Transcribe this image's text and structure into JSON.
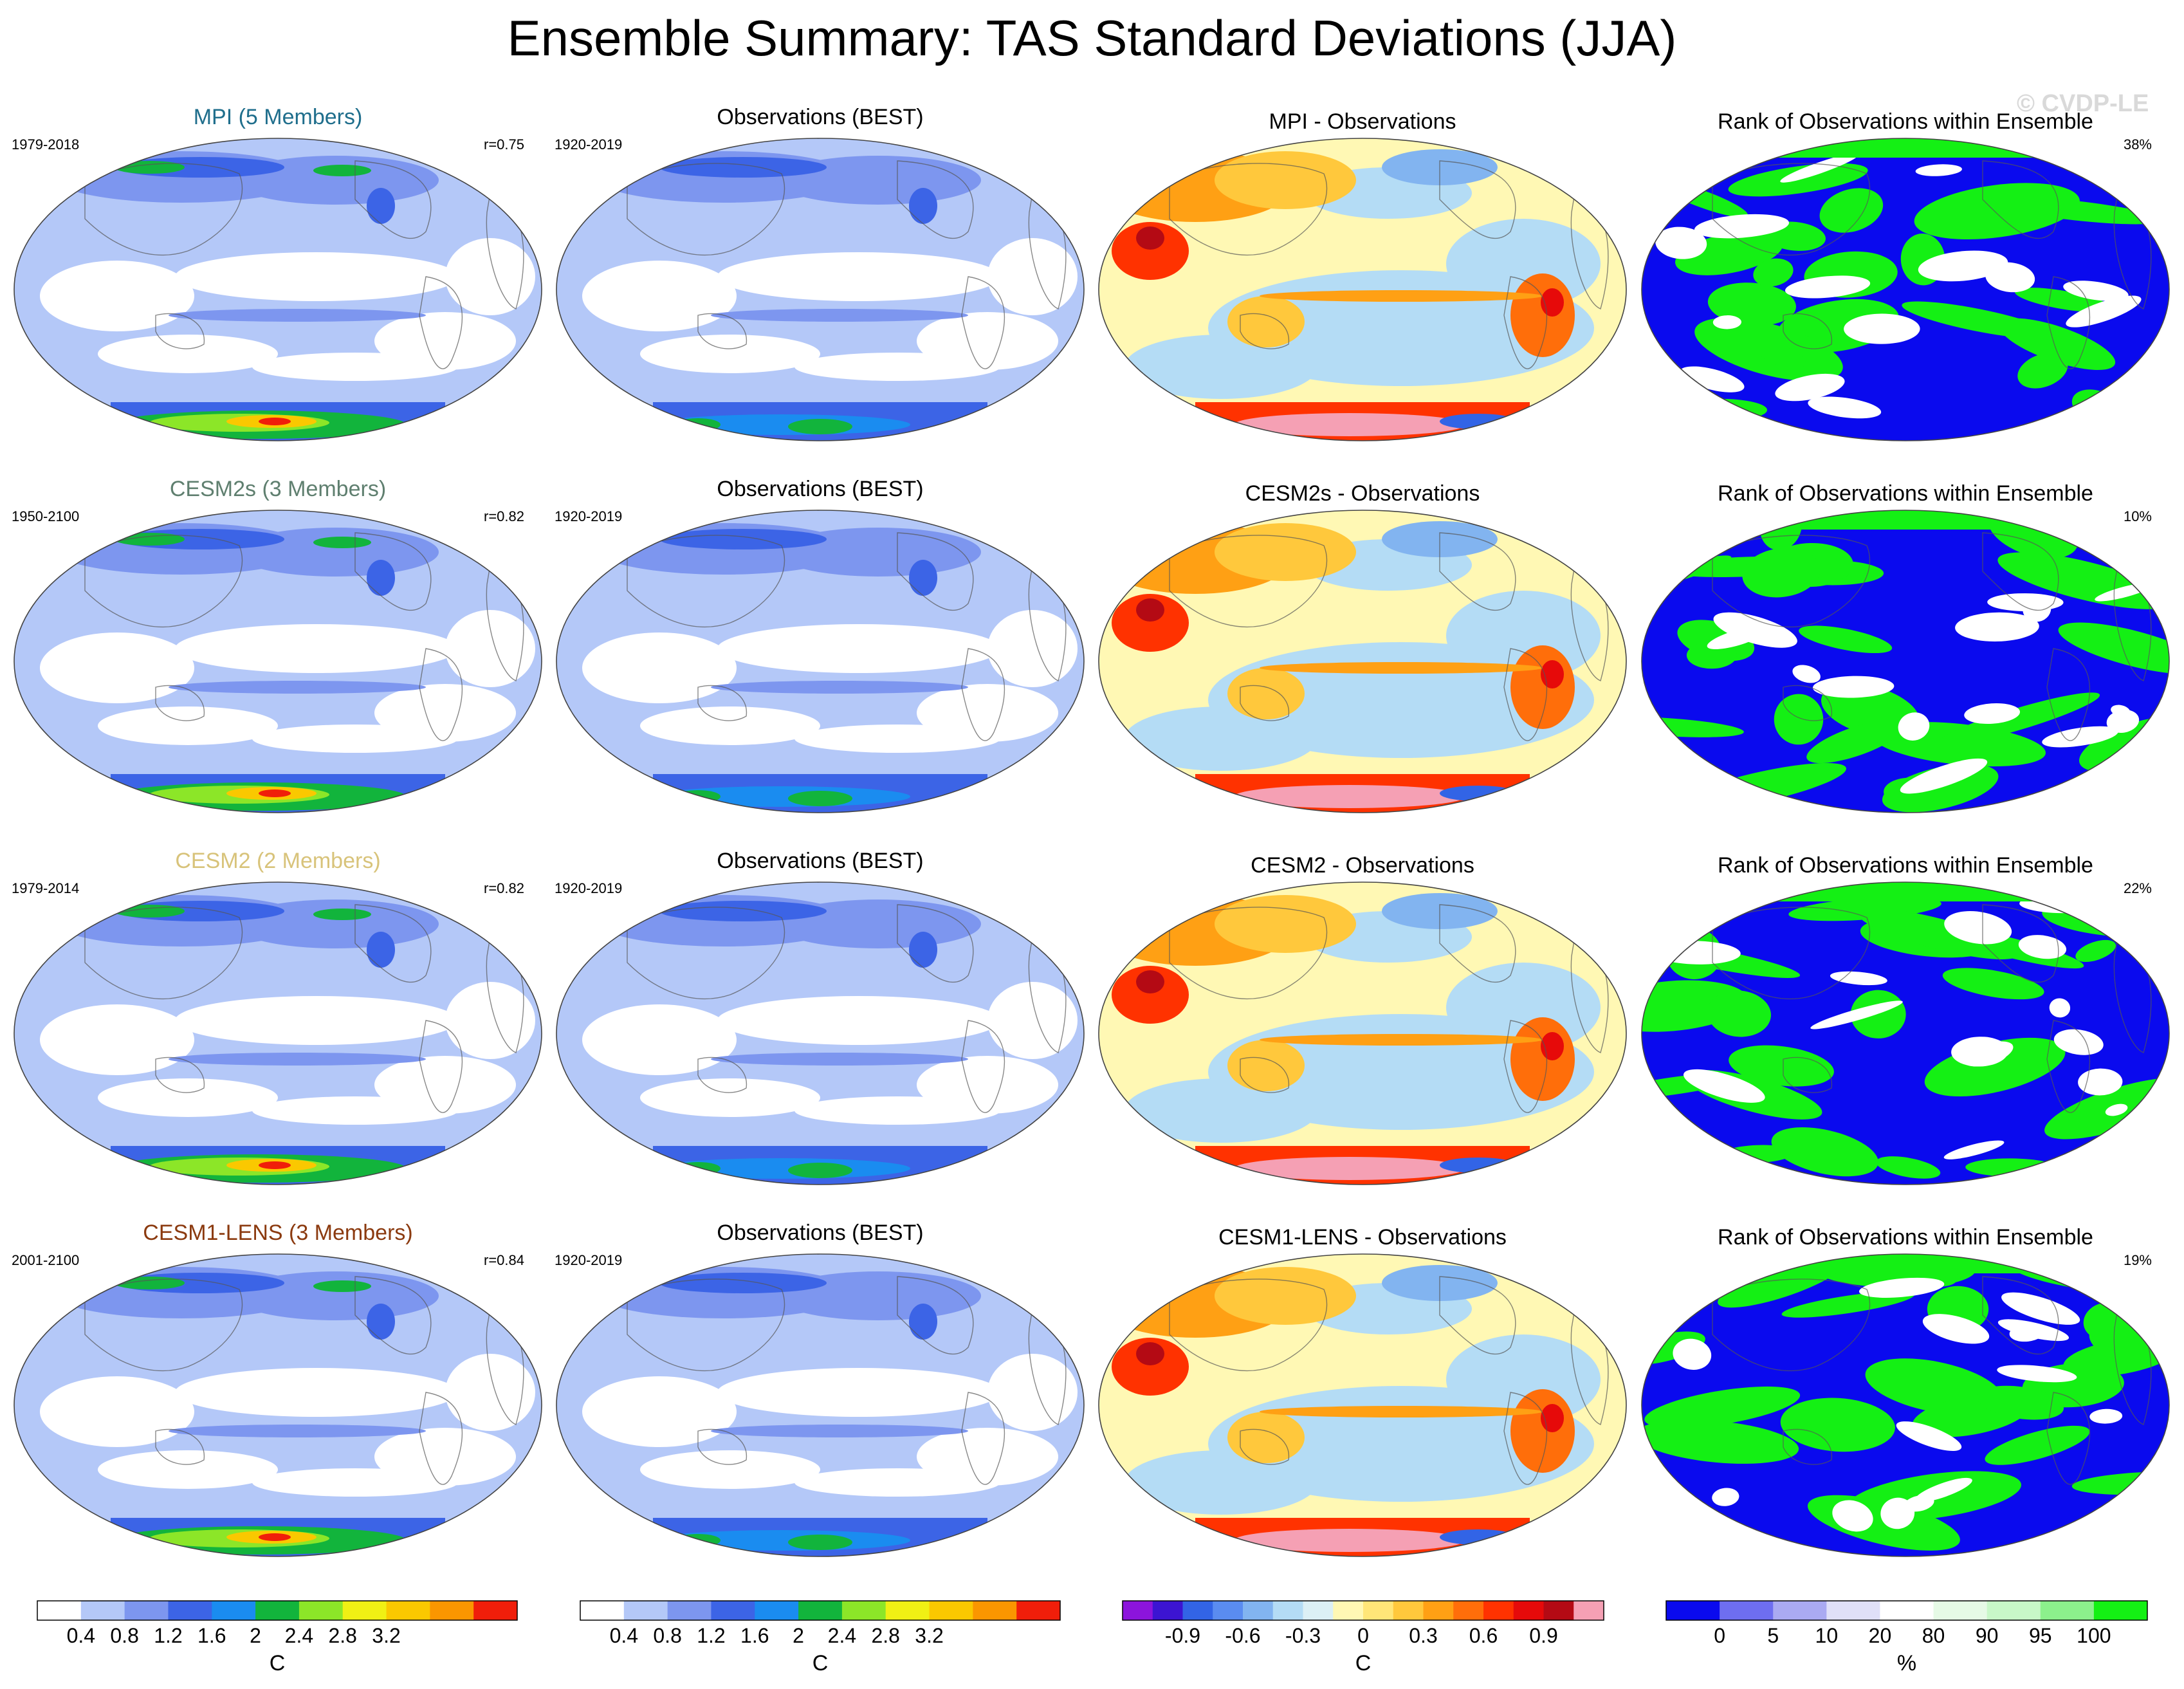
{
  "title": "Ensemble Summary: TAS Standard Deviations (JJA)",
  "watermark": "© CVDP-LE",
  "rows": [
    {
      "model_title": "MPI (5 Members)",
      "model_title_color": "#1f6e8c",
      "model_years": "1979-2018",
      "model_r": "r=0.75",
      "obs_title": "Observations (BEST)",
      "obs_years": "1920-2019",
      "diff_title": "MPI - Observations",
      "rank_title": "Rank of Observations within Ensemble",
      "rank_pct": "38%"
    },
    {
      "model_title": "CESM2s (3 Members)",
      "model_title_color": "#5f7f6f",
      "model_years": "1950-2100",
      "model_r": "r=0.82",
      "obs_title": "Observations (BEST)",
      "obs_years": "1920-2019",
      "diff_title": "CESM2s - Observations",
      "rank_title": "Rank of Observations within Ensemble",
      "rank_pct": "10%"
    },
    {
      "model_title": "CESM2 (2 Members)",
      "model_title_color": "#d8c37a",
      "model_years": "1979-2014",
      "model_r": "r=0.82",
      "obs_title": "Observations (BEST)",
      "obs_years": "1920-2019",
      "diff_title": "CESM2 - Observations",
      "rank_title": "Rank of Observations within Ensemble",
      "rank_pct": "22%"
    },
    {
      "model_title": "CESM1-LENS (3 Members)",
      "model_title_color": "#8b3a0f",
      "model_years": "2001-2100",
      "model_r": "r=0.84",
      "obs_title": "Observations (BEST)",
      "obs_years": "1920-2019",
      "diff_title": "CESM1-LENS - Observations",
      "rank_title": "Rank of Observations within Ensemble",
      "rank_pct": "19%"
    }
  ],
  "colorbars": {
    "sd": {
      "colors": [
        "#ffffff",
        "#b4c8f8",
        "#7d96ef",
        "#3c64e6",
        "#1a8cf0",
        "#12b43c",
        "#8ce628",
        "#f0f014",
        "#fac800",
        "#fa9600",
        "#f01e0a"
      ],
      "ticks": [
        "0.4",
        "0.8",
        "1.2",
        "1.6",
        "2",
        "2.4",
        "2.8",
        "3.2"
      ],
      "unit": "C"
    },
    "diff": {
      "colors": [
        "#8c14dc",
        "#3c14d2",
        "#3264e6",
        "#5a8cf0",
        "#82b4f0",
        "#b4dcf5",
        "#dcf0f5",
        "#fff8b4",
        "#ffe678",
        "#ffc83c",
        "#ffa014",
        "#ff6e0a",
        "#ff3200",
        "#e60a0a",
        "#b40a14",
        "#f5a0b4"
      ],
      "ticks": [
        "-0.9",
        "-0.6",
        "-0.3",
        "0",
        "0.3",
        "0.6",
        "0.9"
      ],
      "unit": "C"
    },
    "rank": {
      "colors": [
        "#0a0aee",
        "#6e6ef0",
        "#aaaaf2",
        "#e0e0f8",
        "#ffffff",
        "#e6fae6",
        "#c8f8c8",
        "#8cf08c",
        "#14f014"
      ],
      "ticks": [
        "0",
        "5",
        "10",
        "20",
        "80",
        "90",
        "95",
        "100"
      ],
      "unit": "%"
    }
  }
}
